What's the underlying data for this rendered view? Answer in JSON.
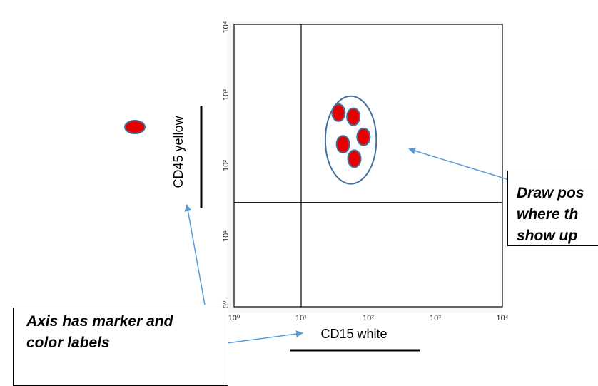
{
  "plot": {
    "x_axis": {
      "scale": "log",
      "range": [
        1,
        10000
      ],
      "tick_values": [
        1,
        10,
        100,
        1000,
        10000
      ],
      "tick_labels": [
        "10⁰",
        "10¹",
        "10²",
        "10³",
        "10⁴"
      ],
      "label": "CD15 white"
    },
    "y_axis": {
      "scale": "log",
      "range": [
        1,
        10000
      ],
      "tick_values": [
        1,
        10,
        100,
        1000,
        10000
      ],
      "tick_labels": [
        "10⁰",
        "10¹",
        "10²",
        "10³",
        "10⁴"
      ],
      "label": "CD45 yellow"
    },
    "quadrant_lines": {
      "x": 10,
      "y": 30
    },
    "population": {
      "color": "#e60000",
      "points": [
        {
          "x": 36,
          "y": 560
        },
        {
          "x": 60,
          "y": 490
        },
        {
          "x": 85,
          "y": 255
        },
        {
          "x": 42,
          "y": 200
        },
        {
          "x": 62,
          "y": 125
        }
      ],
      "gate": {
        "cx": 55,
        "cy": 230,
        "rx_decades": 0.38,
        "ry_decades": 0.62,
        "color": "#41719c"
      }
    }
  },
  "legend_marker": {
    "color": "#e60000"
  },
  "colors": {
    "arrow": "#5b9bd5",
    "axis_bar": "#000000"
  },
  "callouts": {
    "axis_label": {
      "lines": [
        "Axis has marker and",
        "color labels"
      ]
    },
    "population_label": {
      "lines": [
        "Draw pos",
        "where th",
        "show up"
      ]
    }
  }
}
